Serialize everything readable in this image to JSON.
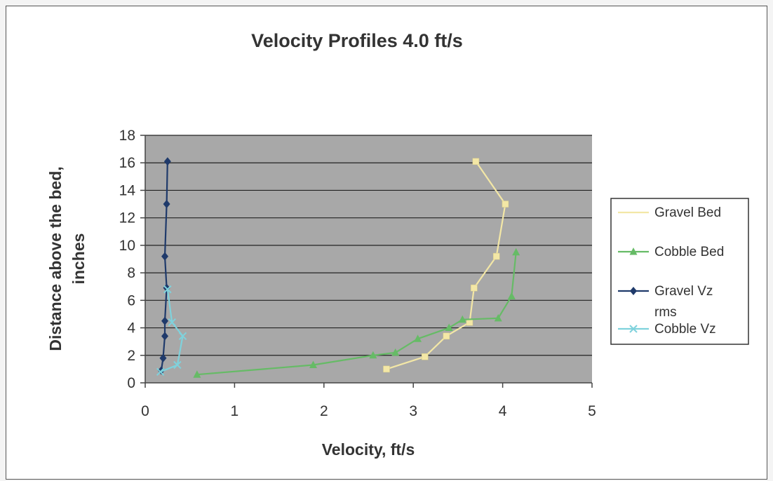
{
  "chart_data": {
    "type": "line",
    "title": "Velocity Profiles 4.0 ft/s",
    "xlabel": "Velocity, ft/s",
    "ylabel_lines": [
      "Distance above the bed,",
      "inches"
    ],
    "xlim": [
      0,
      5
    ],
    "ylim": [
      0,
      18
    ],
    "xticks": [
      0,
      1,
      2,
      3,
      4,
      5
    ],
    "yticks": [
      0,
      2,
      4,
      6,
      8,
      10,
      12,
      14,
      16,
      18
    ],
    "grid": "horizontal",
    "plot_background": "#a8a8a8",
    "legend_position": "right",
    "series": [
      {
        "name": "Gravel Bed",
        "legend_lines": [
          "Gravel Bed"
        ],
        "color": "#f3e7a6",
        "marker": "square",
        "points": [
          [
            2.7,
            1.0
          ],
          [
            3.13,
            1.9
          ],
          [
            3.37,
            3.4
          ],
          [
            3.63,
            4.4
          ],
          [
            3.68,
            6.9
          ],
          [
            3.93,
            9.2
          ],
          [
            4.03,
            13.0
          ],
          [
            3.7,
            16.1
          ]
        ]
      },
      {
        "name": "Cobble Bed",
        "legend_lines": [
          "Cobble Bed"
        ],
        "color": "#66bb66",
        "marker": "triangle",
        "points": [
          [
            0.58,
            0.6
          ],
          [
            1.88,
            1.3
          ],
          [
            2.55,
            2.0
          ],
          [
            2.8,
            2.2
          ],
          [
            3.05,
            3.2
          ],
          [
            3.4,
            4.0
          ],
          [
            3.55,
            4.6
          ],
          [
            3.95,
            4.7
          ],
          [
            4.1,
            6.3
          ],
          [
            4.15,
            9.5
          ]
        ]
      },
      {
        "name": "Gravel Vz rms",
        "legend_lines": [
          "Gravel Vz",
          "rms"
        ],
        "color": "#1f3a6b",
        "marker": "diamond",
        "points": [
          [
            0.18,
            0.9
          ],
          [
            0.2,
            1.8
          ],
          [
            0.22,
            3.4
          ],
          [
            0.22,
            4.5
          ],
          [
            0.24,
            6.9
          ],
          [
            0.22,
            9.2
          ],
          [
            0.24,
            13.0
          ],
          [
            0.25,
            16.1
          ]
        ]
      },
      {
        "name": "Cobble Vz",
        "legend_lines": [
          "Cobble Vz"
        ],
        "color": "#7fd2dc",
        "marker": "x",
        "points": [
          [
            0.17,
            0.8
          ],
          [
            0.36,
            1.3
          ],
          [
            0.42,
            3.4
          ],
          [
            0.3,
            4.4
          ],
          [
            0.25,
            6.8
          ]
        ]
      }
    ]
  }
}
